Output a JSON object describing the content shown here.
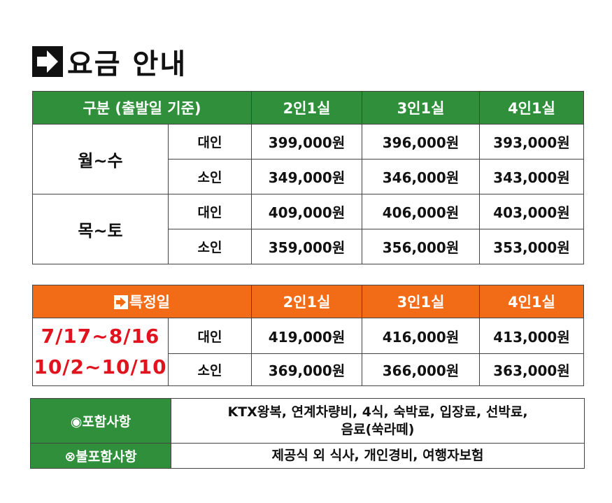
{
  "title": "요금 안내",
  "table1": {
    "headers": [
      "구분 (출발일 기준)",
      "2인1실",
      "3인1실",
      "4인1실"
    ],
    "groups": [
      {
        "name": "월~수",
        "rows": [
          {
            "type": "대인",
            "prices": [
              "399,000원",
              "396,000원",
              "393,000원"
            ]
          },
          {
            "type": "소인",
            "prices": [
              "349,000원",
              "346,000원",
              "343,000원"
            ]
          }
        ]
      },
      {
        "name": "목~토",
        "rows": [
          {
            "type": "대인",
            "prices": [
              "409,000원",
              "406,000원",
              "403,000원"
            ]
          },
          {
            "type": "소인",
            "prices": [
              "359,000원",
              "356,000원",
              "353,000원"
            ]
          }
        ]
      }
    ]
  },
  "table2": {
    "headers": [
      "특정일",
      "2인1실",
      "3인1실",
      "4인1실"
    ],
    "dates": [
      "7/17~8/16",
      "10/2~10/10"
    ],
    "rows": [
      {
        "type": "대인",
        "prices": [
          "419,000원",
          "416,000원",
          "413,000원"
        ]
      },
      {
        "type": "소인",
        "prices": [
          "369,000원",
          "366,000원",
          "363,000원"
        ]
      }
    ]
  },
  "table3": {
    "included_label": "◉포함사항",
    "included_line1": "KTX왕복, 연계차량비, 4식, 숙박료, 입장료, 선박료,",
    "included_line2": "음료(쑥라떼)",
    "excluded_label": "⊗불포함사항",
    "excluded_value": "제공식 외 식사, 개인경비, 여행자보험"
  },
  "colors": {
    "green": "#2f8f3a",
    "orange": "#f26b16",
    "red": "#e0141e"
  }
}
